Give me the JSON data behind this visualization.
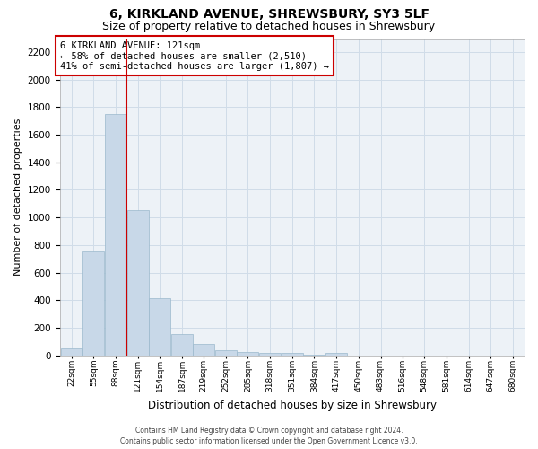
{
  "title": "6, KIRKLAND AVENUE, SHREWSBURY, SY3 5LF",
  "subtitle": "Size of property relative to detached houses in Shrewsbury",
  "xlabel": "Distribution of detached houses by size in Shrewsbury",
  "ylabel": "Number of detached properties",
  "footer1": "Contains HM Land Registry data © Crown copyright and database right 2024.",
  "footer2": "Contains public sector information licensed under the Open Government Licence v3.0.",
  "annotation_title": "6 KIRKLAND AVENUE: 121sqm",
  "annotation_line1": "← 58% of detached houses are smaller (2,510)",
  "annotation_line2": "41% of semi-detached houses are larger (1,807) →",
  "property_size": 121,
  "bar_edges": [
    22,
    55,
    88,
    121,
    154,
    187,
    219,
    252,
    285,
    318,
    351,
    384,
    417,
    450,
    483,
    516,
    548,
    581,
    614,
    647,
    680
  ],
  "bar_heights": [
    50,
    750,
    1750,
    1050,
    415,
    155,
    80,
    35,
    25,
    20,
    15,
    5,
    15,
    0,
    0,
    0,
    0,
    0,
    0,
    0
  ],
  "bar_color": "#c8d8e8",
  "bar_edgecolor": "#9ab8cc",
  "vline_color": "#cc0000",
  "ylim": [
    0,
    2300
  ],
  "yticks": [
    0,
    200,
    400,
    600,
    800,
    1000,
    1200,
    1400,
    1600,
    1800,
    2000,
    2200
  ],
  "grid_color": "#d0dce8",
  "bg_color": "#edf2f7",
  "title_fontsize": 10,
  "subtitle_fontsize": 9,
  "xlabel_fontsize": 8.5,
  "ylabel_fontsize": 8,
  "annotation_fontsize": 7.5,
  "tick_fontsize": 6.5,
  "ytick_fontsize": 7.5,
  "footer_fontsize": 5.5
}
